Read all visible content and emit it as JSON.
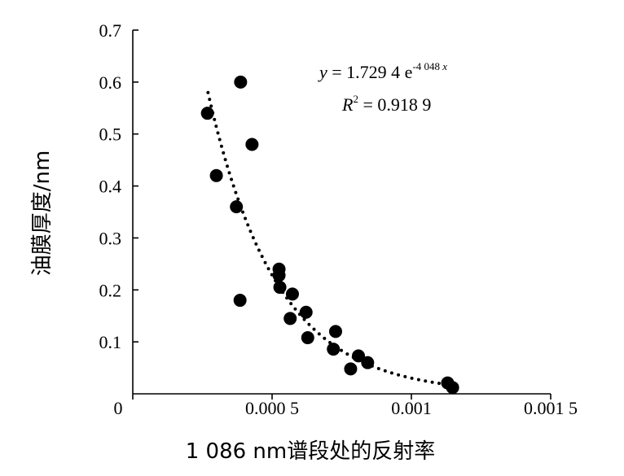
{
  "chart_data": {
    "type": "scatter",
    "xlabel": "1 086 nm谱段处的反射率",
    "ylabel": "油膜厚度/nm",
    "xlim": [
      0,
      0.0015
    ],
    "ylim": [
      0,
      0.7
    ],
    "x_ticks": [
      {
        "value": 0,
        "label": "0"
      },
      {
        "value": 0.0005,
        "label": "0.000 5"
      },
      {
        "value": 0.001,
        "label": "0.001"
      },
      {
        "value": 0.0015,
        "label": "0.001 5"
      }
    ],
    "y_ticks": [
      {
        "value": 0.1,
        "label": "0.1"
      },
      {
        "value": 0.2,
        "label": "0.2"
      },
      {
        "value": 0.3,
        "label": "0.3"
      },
      {
        "value": 0.4,
        "label": "0.4"
      },
      {
        "value": 0.5,
        "label": "0.5"
      },
      {
        "value": 0.6,
        "label": "0.6"
      },
      {
        "value": 0.7,
        "label": "0.7"
      }
    ],
    "grid": false,
    "legend": false,
    "series": [
      {
        "points": [
          {
            "x": 0.000268,
            "y": 0.54
          },
          {
            "x": 0.0003,
            "y": 0.42
          },
          {
            "x": 0.000372,
            "y": 0.36
          },
          {
            "x": 0.000387,
            "y": 0.6
          },
          {
            "x": 0.000385,
            "y": 0.18
          },
          {
            "x": 0.000428,
            "y": 0.48
          },
          {
            "x": 0.000525,
            "y": 0.24
          },
          {
            "x": 0.000525,
            "y": 0.228
          },
          {
            "x": 0.000528,
            "y": 0.205
          },
          {
            "x": 0.000573,
            "y": 0.192
          },
          {
            "x": 0.000565,
            "y": 0.145
          },
          {
            "x": 0.000622,
            "y": 0.157
          },
          {
            "x": 0.000628,
            "y": 0.108
          },
          {
            "x": 0.000728,
            "y": 0.12
          },
          {
            "x": 0.00072,
            "y": 0.086
          },
          {
            "x": 0.00081,
            "y": 0.073
          },
          {
            "x": 0.000843,
            "y": 0.06
          },
          {
            "x": 0.000782,
            "y": 0.048
          },
          {
            "x": 0.00113,
            "y": 0.021
          },
          {
            "x": 0.001148,
            "y": 0.012
          }
        ]
      }
    ],
    "trendline": {
      "type": "exponential",
      "a": 1.7294,
      "b": -4048,
      "x_range": [
        0.00027,
        0.00115
      ],
      "style": "dotted"
    },
    "annotations": {
      "equation": {
        "y_var": "y",
        "eq_prefix": " = 1.729 4 e",
        "exponent": "-4 048 ",
        "x_var": "x"
      },
      "r2": {
        "var": "R",
        "sup": "2",
        "value": " = 0.918 9"
      }
    }
  }
}
